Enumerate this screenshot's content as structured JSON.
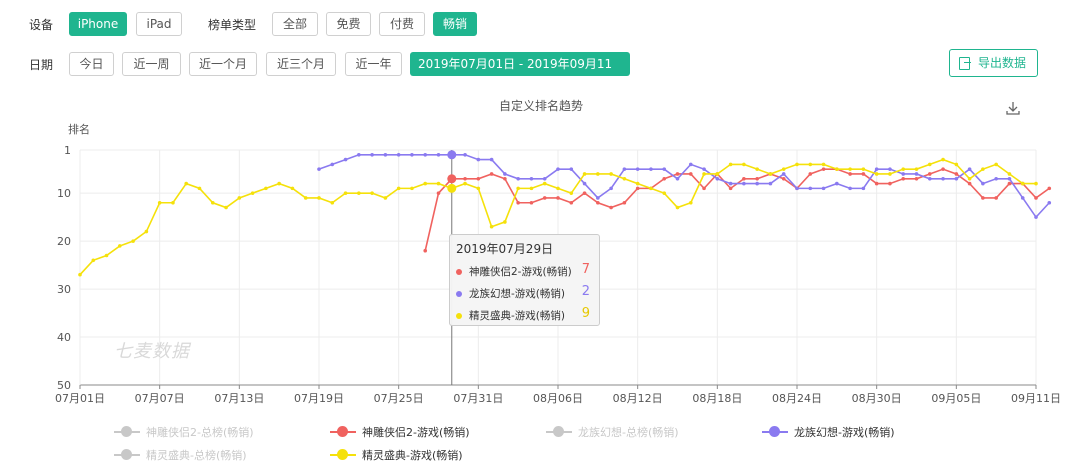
{
  "filters": {
    "device_label": "设备",
    "devices": [
      "iPhone",
      "iPad"
    ],
    "device_active": 0,
    "chart_type_label": "榜单类型",
    "chart_types": [
      "全部",
      "免费",
      "付费",
      "畅销"
    ],
    "chart_type_active": 3,
    "date_label": "日期",
    "date_presets": [
      "今日",
      "近一周",
      "近一个月",
      "近三个月",
      "近一年"
    ],
    "date_range": "2019年07月01日 - 2019年09月11日",
    "export_label": "导出数据"
  },
  "chart": {
    "title": "自定义排名趋势",
    "ylabel": "排名",
    "watermark": "七麦数据",
    "tooltip": {
      "date": "2019年07月29日",
      "items": [
        {
          "name": "神雕侠侣2-游戏(畅销)",
          "value": "7",
          "color": "#f0625f"
        },
        {
          "name": "龙族幻想-游戏(畅销)",
          "value": "2",
          "color": "#8a7af0"
        },
        {
          "name": "精灵盛典-游戏(畅销)",
          "value": "9",
          "color": "#f5e10a"
        }
      ]
    }
  },
  "legend": [
    {
      "name": "神雕侠侣2-总榜(畅销)",
      "color": "#c8c8c8",
      "active": false
    },
    {
      "name": "神雕侠侣2-游戏(畅销)",
      "color": "#f0625f",
      "active": true
    },
    {
      "name": "龙族幻想-总榜(畅销)",
      "color": "#c8c8c8",
      "active": false
    },
    {
      "name": "龙族幻想-游戏(畅销)",
      "color": "#8a7af0",
      "active": true
    },
    {
      "name": "精灵盛典-总榜(畅销)",
      "color": "#c8c8c8",
      "active": false
    },
    {
      "name": "精灵盛典-游戏(畅销)",
      "color": "#f5e10a",
      "active": true
    }
  ],
  "chart_data": {
    "type": "line",
    "title": "自定义排名趋势",
    "xlabel": "",
    "ylabel": "排名",
    "y_inverted": true,
    "ylim": [
      1,
      50
    ],
    "y_ticks": [
      1,
      10,
      20,
      30,
      40,
      50
    ],
    "x_start": "07月01日",
    "x_end": "09月11日",
    "x_tick_labels": [
      "07月01日",
      "07月07日",
      "07月13日",
      "07月19日",
      "07月25日",
      "07月31日",
      "08月06日",
      "08月12日",
      "08月18日",
      "08月24日",
      "08月30日",
      "09月05日",
      "09月11日"
    ],
    "x_tick_days": [
      0,
      6,
      12,
      18,
      24,
      30,
      36,
      42,
      48,
      54,
      60,
      66,
      72
    ],
    "grid": true,
    "series": [
      {
        "name": "神雕侠侣2-游戏(畅销)",
        "color": "#f0625f",
        "start_day": 26,
        "values": [
          22,
          10,
          7,
          7,
          7,
          6,
          7,
          12,
          12,
          11,
          11,
          12,
          10,
          12,
          13,
          12,
          9,
          9,
          7,
          6,
          6,
          9,
          6,
          9,
          7,
          7,
          6,
          7,
          9,
          6,
          5,
          5,
          6,
          6,
          8,
          8,
          7,
          7,
          6,
          5,
          6,
          8,
          11,
          11,
          8,
          8,
          11,
          9
        ]
      },
      {
        "name": "龙族幻想-游戏(畅销)",
        "color": "#8a7af0",
        "start_day": 18,
        "values": [
          5,
          4,
          3,
          2,
          2,
          2,
          2,
          2,
          2,
          2,
          2,
          2,
          3,
          3,
          6,
          7,
          7,
          7,
          5,
          5,
          8,
          11,
          9,
          5,
          5,
          5,
          5,
          7,
          4,
          5,
          7,
          8,
          8,
          8,
          8,
          6,
          9,
          9,
          9,
          8,
          9,
          9,
          5,
          5,
          6,
          6,
          7,
          7,
          7,
          5,
          8,
          7,
          7,
          11,
          15,
          12
        ]
      },
      {
        "name": "精灵盛典-游戏(畅销)",
        "color": "#f5e10a",
        "start_day": 0,
        "values": [
          27,
          24,
          23,
          21,
          20,
          18,
          12,
          12,
          8,
          9,
          12,
          13,
          11,
          10,
          9,
          8,
          9,
          11,
          11,
          12,
          10,
          10,
          10,
          11,
          9,
          9,
          8,
          8,
          9,
          8,
          9,
          17,
          16,
          9,
          9,
          8,
          9,
          10,
          6,
          6,
          6,
          7,
          8,
          9,
          10,
          13,
          12,
          6,
          6,
          4,
          4,
          5,
          6,
          5,
          4,
          4,
          4,
          5,
          5,
          5,
          6,
          6,
          5,
          5,
          4,
          3,
          4,
          7,
          5,
          4,
          6,
          8,
          8
        ]
      }
    ],
    "highlight_day": 28
  }
}
